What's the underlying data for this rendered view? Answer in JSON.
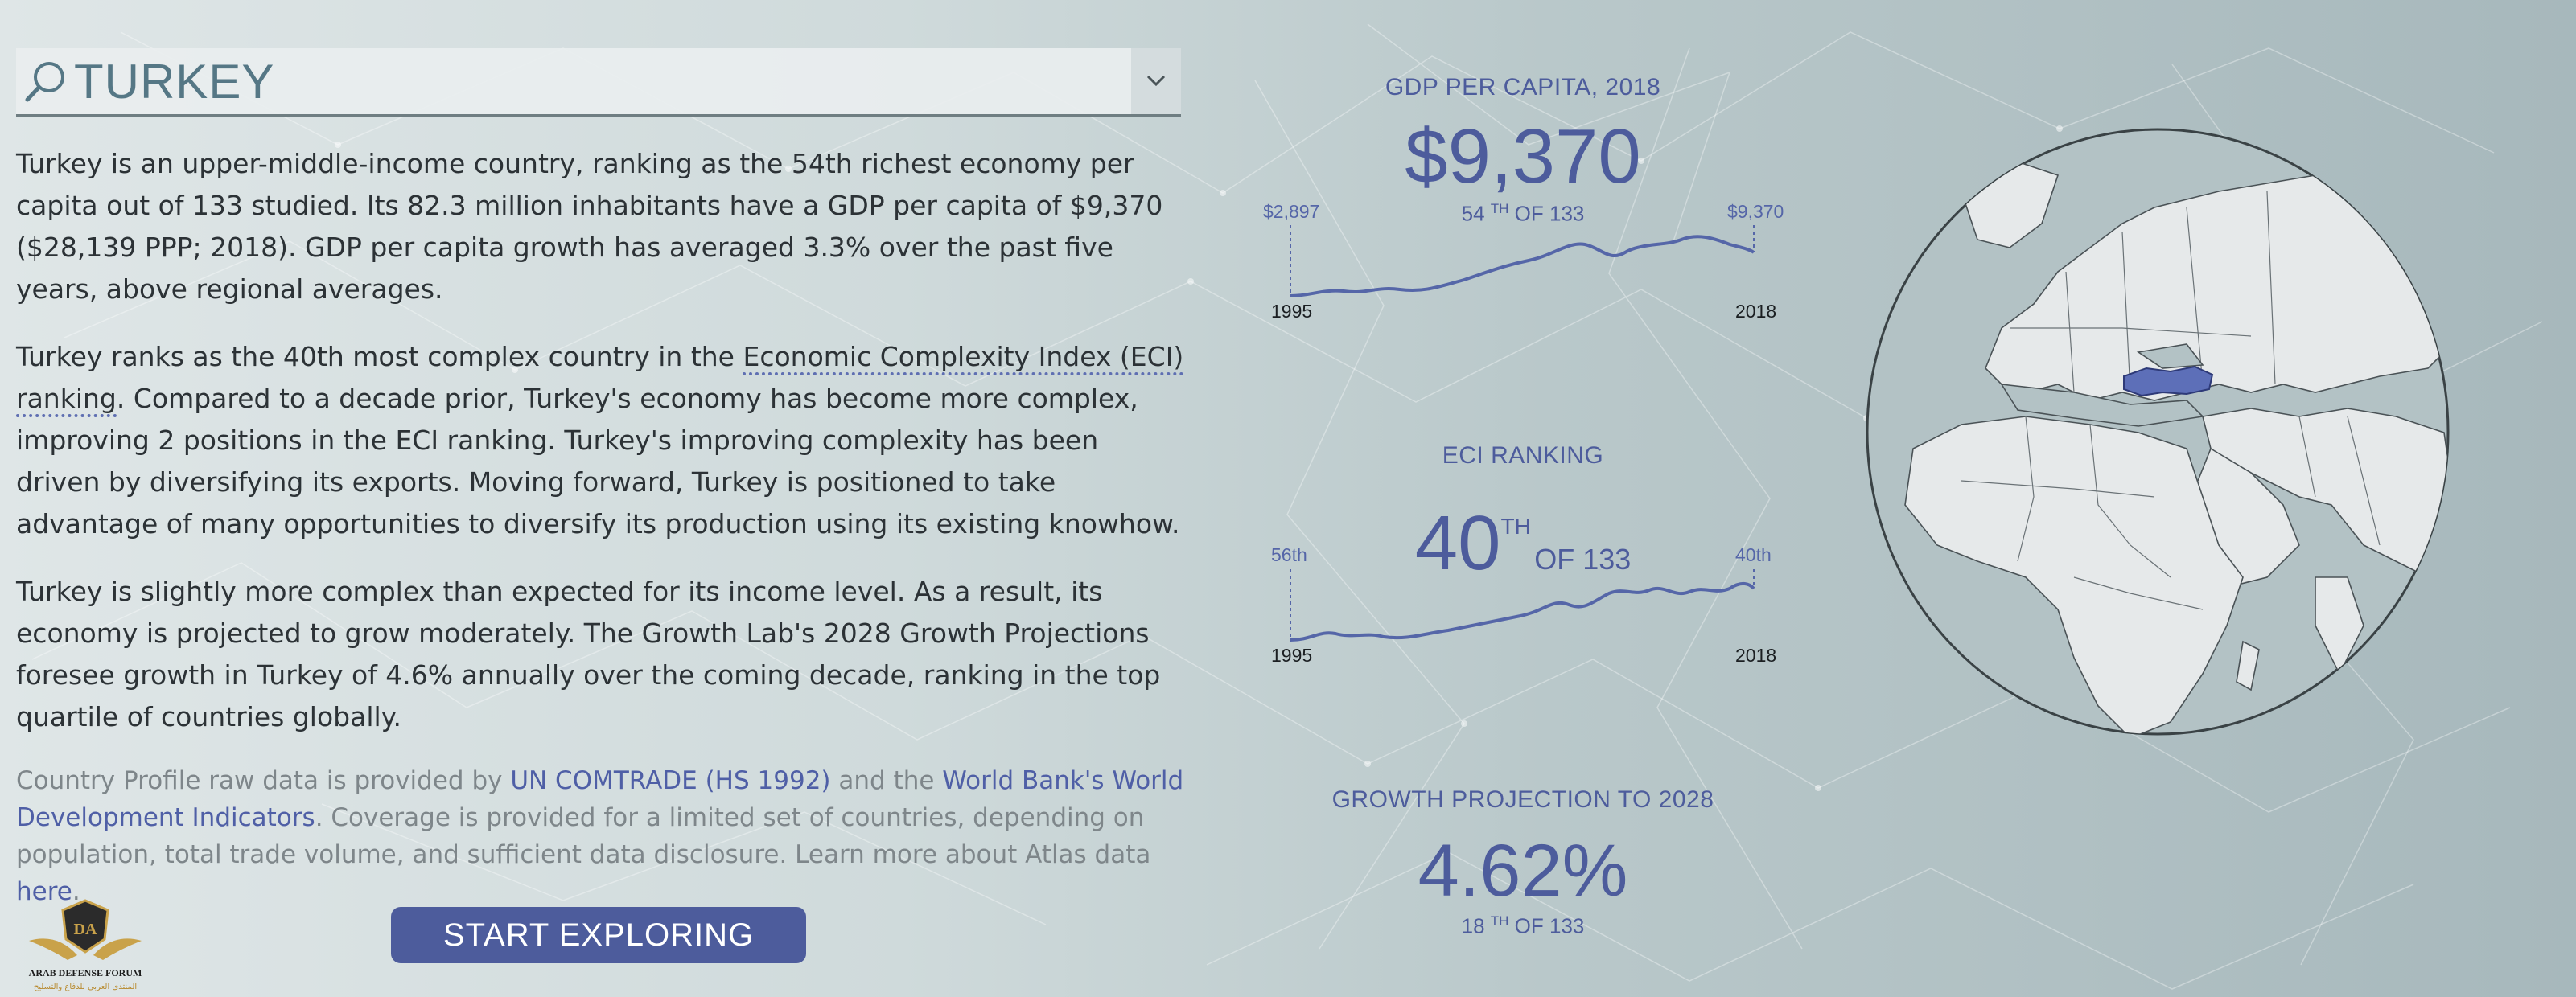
{
  "search": {
    "country": "TURKEY",
    "icons": {
      "search": "search-icon",
      "dropdown": "chevron-down-icon"
    }
  },
  "intro": {
    "p1": "Turkey is an upper-middle-income country, ranking as the 54th richest economy per capita out of 133 studied. Its 82.3 million inhabitants have a GDP per capita of $9,370 ($28,139 PPP; 2018). GDP per capita growth has averaged 3.3% over the past five years, above regional averages.",
    "p2_before": "Turkey ranks as the 40th most complex country in the ",
    "p2_link": "Economic Complexity Index (ECI) ranking",
    "p2_after": ". Compared to a decade prior, Turkey's economy has become more complex, improving 2 positions in the ECI ranking. Turkey's improving complexity has been driven by diversifying its exports. Moving forward, Turkey is positioned to take advantage of many opportunities to diversify its production using its existing knowhow.",
    "p3": "Turkey is slightly more complex than expected for its income level. As a result, its economy is projected to grow moderately. The Growth Lab's 2028 Growth Projections foresee growth in Turkey of 4.6% annually over the coming decade, ranking in the top quartile of countries globally."
  },
  "source_note": {
    "t1": "Country Profile raw data is provided by ",
    "link1": "UN COMTRADE (HS 1992)",
    "t2": " and the ",
    "link2": "World Bank's World Development Indicators",
    "t3": ". Coverage is provided for a limited set of countries, depending on population, total trade volume, and sufficient data disclosure. Learn more about Atlas data ",
    "link3": "here",
    "t4": "."
  },
  "start_button": "START EXPLORING",
  "logo": {
    "line1": "ARAB DEFENSE FORUM",
    "line2": "المنتدى العربي للدفاع والتسليح",
    "mark": "DA"
  },
  "stats": {
    "gdp": {
      "title": "GDP PER CAPITA, 2018",
      "value": "$9,370",
      "rank_num": "54",
      "rank_sup": "TH",
      "rank_of": "OF 133",
      "start_year": "1995",
      "end_year": "2018",
      "start_value": "$2,897",
      "end_value": "$9,370"
    },
    "eci": {
      "title": "ECI RANKING",
      "value": "40",
      "value_sup": "TH",
      "value_of": "OF 133",
      "start_year": "1995",
      "end_year": "2018",
      "start_value": "56th",
      "end_value": "40th"
    },
    "growth": {
      "title": "GROWTH PROJECTION TO 2028",
      "value": "4.62%",
      "rank_num": "18",
      "rank_sup": "TH",
      "rank_of": "OF 133"
    }
  },
  "colors": {
    "accent": "#4d5c9c",
    "highlight_country": "#5d6fb8",
    "text": "#2c3236",
    "muted": "#7e868a"
  }
}
